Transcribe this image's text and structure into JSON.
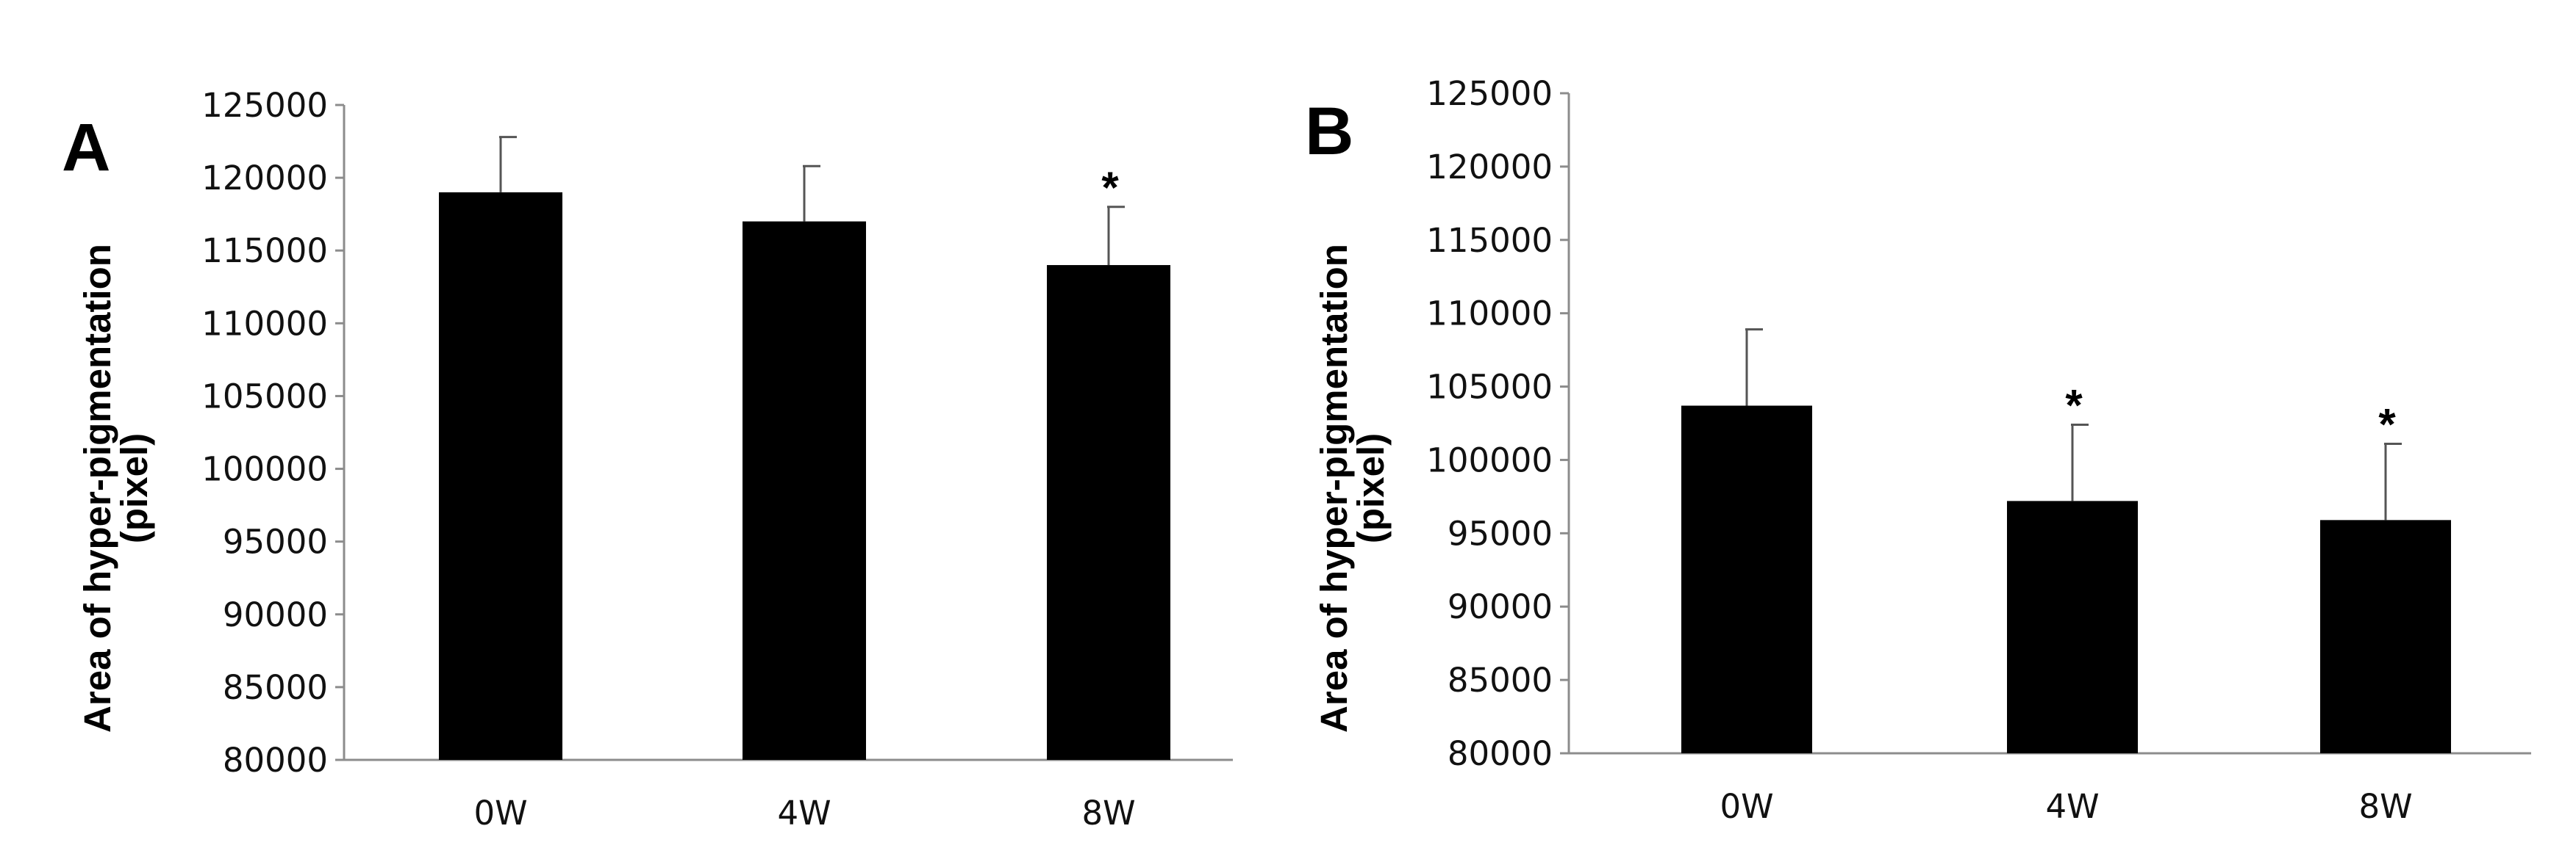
{
  "colors": {
    "bar": "#000000",
    "axis": "#8c8c8c",
    "error_bar": "#555555",
    "text": "#111111"
  },
  "chart_data": [
    {
      "type": "bar",
      "panel_label": "A",
      "categories": [
        "0W",
        "4W",
        "8W"
      ],
      "values": [
        119000,
        117000,
        114000
      ],
      "error_upper": [
        3800,
        3800,
        4000
      ],
      "significance": [
        "",
        "",
        "*"
      ],
      "ylabel_line1": "Area of hyper-pigmentation",
      "ylabel_line2": "(pixel)",
      "ylim": [
        80000,
        125000
      ],
      "yticks": [
        80000,
        85000,
        90000,
        95000,
        100000,
        105000,
        110000,
        115000,
        120000,
        125000
      ],
      "ytick_labels": [
        "80000",
        "85000",
        "90000",
        "95000",
        "100000",
        "105000",
        "110000",
        "115000",
        "120000",
        "125000"
      ],
      "grid": false
    },
    {
      "type": "bar",
      "panel_label": "B",
      "categories": [
        "0W",
        "4W",
        "8W"
      ],
      "values": [
        103700,
        97200,
        95900
      ],
      "error_upper": [
        5200,
        5200,
        5200
      ],
      "significance": [
        "",
        "*",
        "*"
      ],
      "ylabel_line1": "Area of hyper-pigmentation",
      "ylabel_line2": "(pixel)",
      "ylim": [
        80000,
        125000
      ],
      "yticks": [
        80000,
        85000,
        90000,
        95000,
        100000,
        105000,
        110000,
        115000,
        120000,
        125000
      ],
      "ytick_labels": [
        "80000",
        "85000",
        "90000",
        "95000",
        "100000",
        "105000",
        "110000",
        "115000",
        "120000",
        "125000"
      ],
      "grid": false
    }
  ]
}
